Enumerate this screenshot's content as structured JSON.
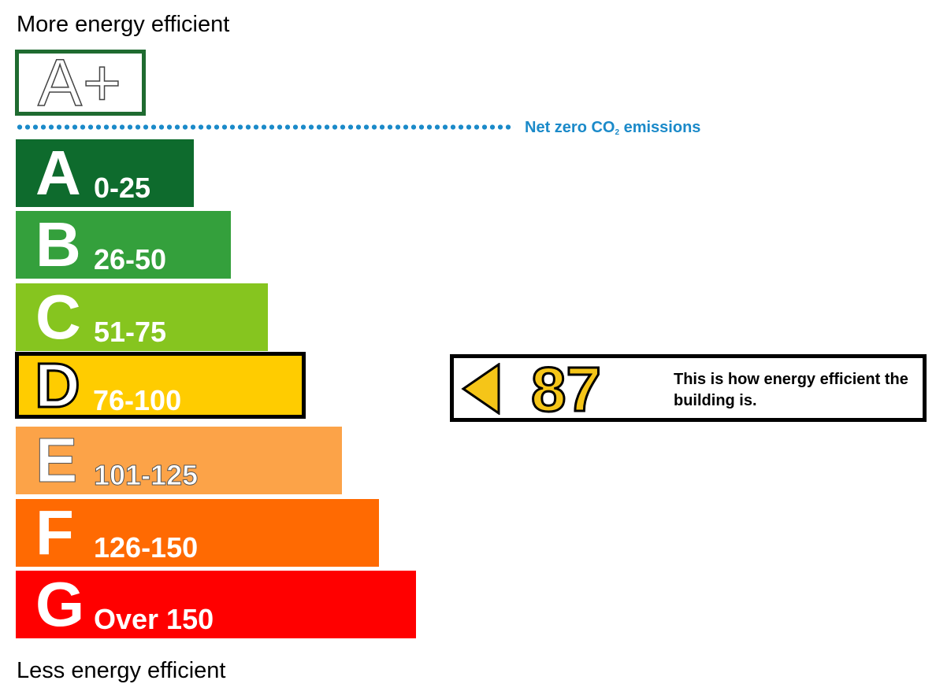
{
  "captions": {
    "top": "More energy efficient",
    "bottom": "Less energy efficient"
  },
  "aplus": {
    "label": "A+",
    "border_color": "#1f6b30"
  },
  "net_zero": {
    "label_before": "Net zero CO",
    "label_sub": "2",
    "label_after": " emissions",
    "color": "#1b8ac9"
  },
  "chart_data": {
    "type": "bar",
    "orientation": "horizontal",
    "title": "",
    "categories": [
      "A",
      "B",
      "C",
      "D",
      "E",
      "F",
      "G"
    ],
    "bands": [
      {
        "letter": "A",
        "range": "0-25",
        "color": "#0e6b2d"
      },
      {
        "letter": "B",
        "range": "26-50",
        "color": "#34a03c"
      },
      {
        "letter": "C",
        "range": "51-75",
        "color": "#86c51f"
      },
      {
        "letter": "D",
        "range": "76-100",
        "color": "#ffcc00"
      },
      {
        "letter": "E",
        "range": "101-125",
        "color": "#fca348"
      },
      {
        "letter": "F",
        "range": "126-150",
        "color": "#ff6a02"
      },
      {
        "letter": "G",
        "range": "Over 150",
        "color": "#ff0000"
      }
    ],
    "current_rating": {
      "value": 87,
      "band": "D",
      "color": "#f5c518",
      "text": "This is how energy efficient the building is."
    },
    "legend": "none",
    "grid": false
  }
}
